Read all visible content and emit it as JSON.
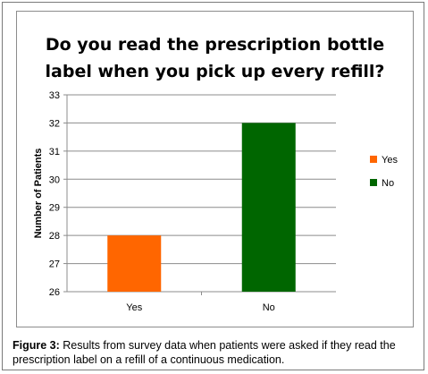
{
  "chart_data": {
    "type": "bar",
    "title_lines": [
      "Do you read the prescription bottle",
      "label when you pick up every refill?"
    ],
    "xlabel": "",
    "ylabel": "Number of Patients",
    "categories": [
      "Yes",
      "No"
    ],
    "values": [
      28,
      32
    ],
    "bar_colors": [
      "#ff6600",
      "#006600"
    ],
    "ylim": [
      26,
      33
    ],
    "yticks": [
      "26",
      "27",
      "28",
      "29",
      "30",
      "31",
      "32",
      "33"
    ],
    "grid": true,
    "legend": {
      "placement": "right",
      "entries": [
        {
          "label": "Yes",
          "color": "#ff6600"
        },
        {
          "label": "No",
          "color": "#006600"
        }
      ]
    }
  },
  "caption": {
    "label": "Figure 3:",
    "text": " Results from survey data when patients were asked if they read the prescription label on a refill of a continuous medication."
  }
}
